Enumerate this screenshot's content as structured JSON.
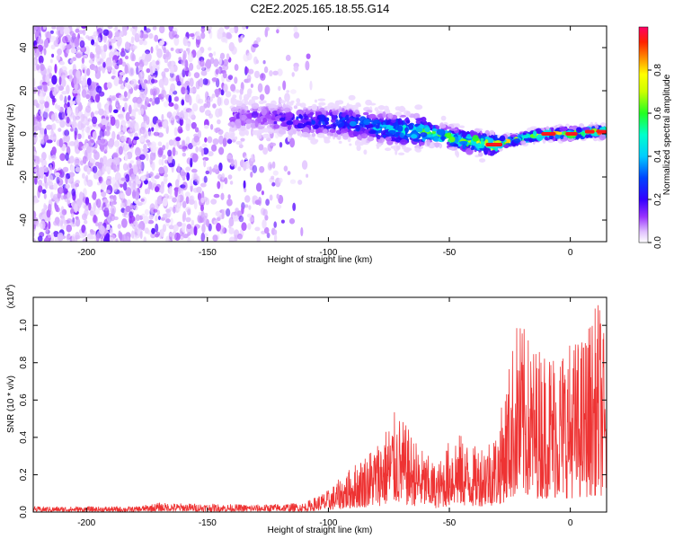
{
  "title": "C2E2.2025.165.18.55.G14",
  "chart_data": [
    {
      "type": "heatmap",
      "xlabel": "Height of straight line (km)",
      "ylabel": "Frequency (Hz)",
      "xlim": [
        -222,
        15
      ],
      "ylim": [
        -50,
        50
      ],
      "x_ticks": [
        -200,
        -150,
        -100,
        -50,
        0
      ],
      "y_ticks": [
        -40,
        -20,
        0,
        20,
        40
      ],
      "colorbar": {
        "label": "Normalized spectral amplitude",
        "range": [
          0,
          1
        ],
        "ticks": [
          0.0,
          0.2,
          0.4,
          0.6,
          0.8
        ],
        "colors": [
          "#ffffff",
          "#d9b3ff",
          "#8a2be2",
          "#3300ff",
          "#0000ff",
          "#00aaff",
          "#00e6e6",
          "#00ff66",
          "#33ff00",
          "#ccff00",
          "#ffff00",
          "#ffaa00",
          "#ff3300",
          "#ff0055"
        ]
      },
      "ridge": {
        "description_points": [
          {
            "x": -130,
            "y": 8,
            "amp": 0.15
          },
          {
            "x": -110,
            "y": 6,
            "amp": 0.25
          },
          {
            "x": -90,
            "y": 5,
            "amp": 0.35
          },
          {
            "x": -75,
            "y": 2,
            "amp": 0.45
          },
          {
            "x": -60,
            "y": 1,
            "amp": 0.6
          },
          {
            "x": -45,
            "y": -3,
            "amp": 0.65
          },
          {
            "x": -32,
            "y": -5,
            "amp": 0.9
          },
          {
            "x": -20,
            "y": -2,
            "amp": 0.6
          },
          {
            "x": -10,
            "y": 0,
            "amp": 0.85
          },
          {
            "x": 0,
            "y": 0,
            "amp": 0.8
          },
          {
            "x": 10,
            "y": 1,
            "amp": 0.9
          }
        ]
      }
    },
    {
      "type": "line",
      "xlabel": "Height of straight line (km)",
      "ylabel": "SNR (10 * v/v)",
      "y_multiplier": "(x10",
      "y_multiplier_exp": "4",
      "xlim": [
        -222,
        15
      ],
      "ylim": [
        0,
        1.15
      ],
      "x_ticks": [
        -200,
        -150,
        -100,
        -50,
        0
      ],
      "y_ticks": [
        0.0,
        0.2,
        0.4,
        0.6,
        0.8,
        1.0
      ],
      "series": [
        {
          "color": "#ee3333",
          "envelope": [
            {
              "x": -222,
              "y": 0.03
            },
            {
              "x": -180,
              "y": 0.03
            },
            {
              "x": -170,
              "y": 0.05
            },
            {
              "x": -130,
              "y": 0.04
            },
            {
              "x": -110,
              "y": 0.05
            },
            {
              "x": -100,
              "y": 0.12
            },
            {
              "x": -90,
              "y": 0.25
            },
            {
              "x": -80,
              "y": 0.38
            },
            {
              "x": -72,
              "y": 0.55
            },
            {
              "x": -62,
              "y": 0.35
            },
            {
              "x": -55,
              "y": 0.25
            },
            {
              "x": -48,
              "y": 0.45
            },
            {
              "x": -40,
              "y": 0.35
            },
            {
              "x": -30,
              "y": 0.45
            },
            {
              "x": -22,
              "y": 1.05
            },
            {
              "x": -15,
              "y": 0.9
            },
            {
              "x": -5,
              "y": 0.9
            },
            {
              "x": 5,
              "y": 0.95
            },
            {
              "x": 12,
              "y": 1.15
            },
            {
              "x": 15,
              "y": 0.85
            }
          ]
        }
      ]
    }
  ]
}
